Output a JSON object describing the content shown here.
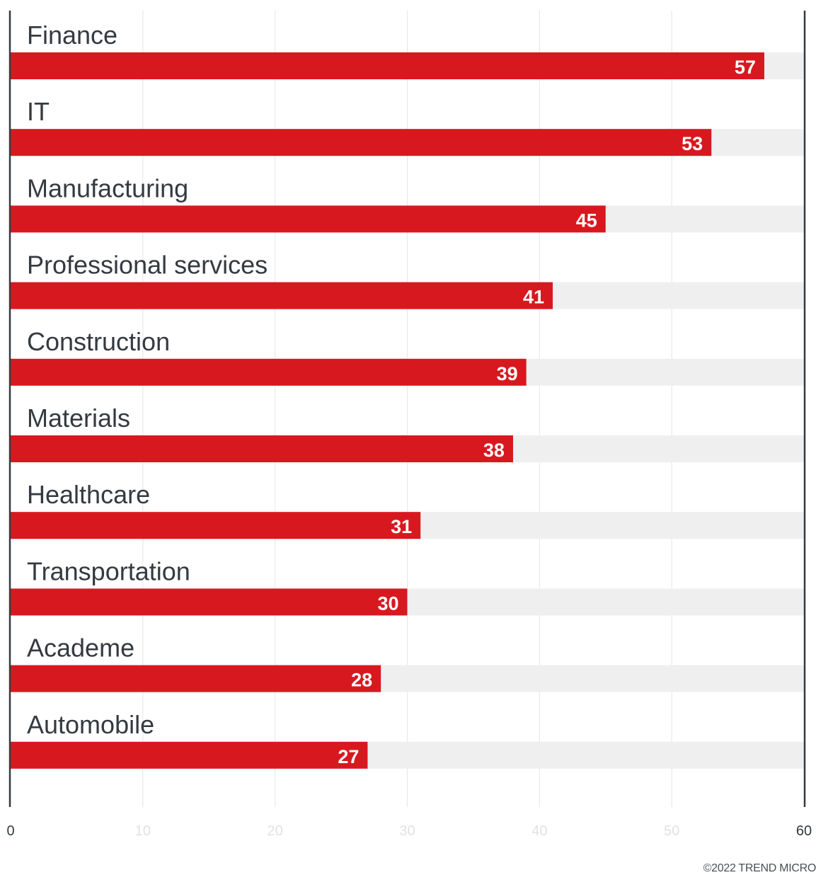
{
  "chart_data": {
    "type": "bar",
    "orientation": "horizontal",
    "categories": [
      "Finance",
      "IT",
      "Manufacturing",
      "Professional services",
      "Construction",
      "Materials",
      "Healthcare",
      "Transportation",
      "Academe",
      "Automobile"
    ],
    "values": [
      57,
      53,
      45,
      41,
      39,
      38,
      31,
      30,
      28,
      27
    ],
    "xlim": [
      0,
      60
    ],
    "x_ticks": [
      "0",
      "10",
      "20",
      "30",
      "40",
      "50",
      "60"
    ],
    "grid": true,
    "show_data_labels": true
  },
  "colors": {
    "bar": "#d7191f",
    "track": "#efefef",
    "category_text": "#343a40",
    "axis_line": "#343a40",
    "grid": "#e6e6e6",
    "end_tick_label": "#343a40",
    "mid_tick_label": "#e2e2e2",
    "data_label": "#ffffff"
  },
  "footer": {
    "copyright": "©2022 TREND MICRO"
  }
}
